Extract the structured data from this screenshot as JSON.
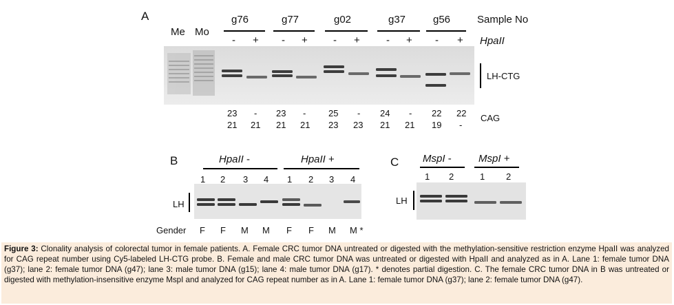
{
  "panelA": {
    "letter": "A",
    "lane_labels": [
      "Me",
      "Mo"
    ],
    "samples": [
      "g76",
      "g77",
      "g02",
      "g37",
      "g56"
    ],
    "sample_no_label": "Sample No",
    "treatment_signs": [
      "-",
      "+",
      "-",
      "+",
      "-",
      "+",
      "-",
      "+",
      "-",
      "+"
    ],
    "enzyme_label": "HpaII",
    "band_label": "LH-CTG",
    "cag_label": "CAG",
    "cag_top": [
      "23",
      "-",
      "23",
      "-",
      "25",
      "-",
      "24",
      "-",
      "22",
      "22"
    ],
    "cag_bottom": [
      "21",
      "21",
      "21",
      "21",
      "23",
      "23",
      "21",
      "21",
      "19",
      "-"
    ]
  },
  "panelB": {
    "letter": "B",
    "groups": [
      {
        "enzyme": "HpaII",
        "sign": "-"
      },
      {
        "enzyme": "HpaII",
        "sign": "+"
      }
    ],
    "lanes": [
      "1",
      "2",
      "3",
      "4",
      "1",
      "2",
      "3",
      "4"
    ],
    "band_label": "LH",
    "gender_label": "Gender",
    "genders": [
      "F",
      "F",
      "M",
      "M",
      "F",
      "F",
      "M",
      "M *"
    ]
  },
  "panelC": {
    "letter": "C",
    "groups": [
      {
        "enzyme": "MspI",
        "sign": "-"
      },
      {
        "enzyme": "MspI",
        "sign": "+"
      }
    ],
    "lanes": [
      "1",
      "2",
      "1",
      "2"
    ],
    "band_label": "LH"
  },
  "caption": {
    "title": "Figure 3:",
    "text": "Clonality analysis of colorectal tumor in female patients. A. Female CRC tumor DNA untreated or digested with the methylation-sensitive restriction enzyme HpaII was analyzed for CAG repeat number using Cy5-labeled LH-CTG probe. B. Female and male CRC tumor DNA was untreated or digested with HpaII and analyzed as in A. Lane 1: female tumor DNA (g37); lane 2: female tumor DNA (g47); lane 3: male tumor DNA (g15); lane 4: male tumor DNA (g17). * denotes partial digestion. C. The female CRC tumor DNA in B was untreated or digested with methylation-insensitive enzyme MspI and analyzed for CAG repeat number as in A. Lane 1: female tumor DNA (g37); lane 2: female tumor DNA (g47)."
  }
}
